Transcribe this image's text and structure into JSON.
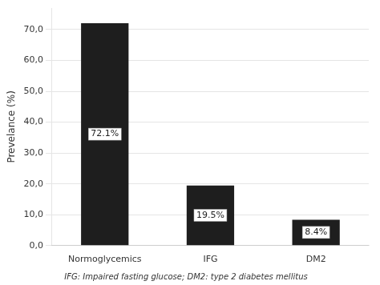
{
  "chart_data": {
    "type": "bar",
    "categories": [
      "Normoglycemics",
      "IFG",
      "DM2"
    ],
    "values": [
      72.1,
      19.5,
      8.4
    ],
    "value_labels": [
      "72.1%",
      "19.5%",
      "8.4%"
    ],
    "data_labels": true,
    "color": "#1e1e1e",
    "ylabel": "Prevelance (%)",
    "ylim": [
      0,
      77
    ],
    "yticks": [
      {
        "value": 0,
        "label": "0,0"
      },
      {
        "value": 10,
        "label": "10,0"
      },
      {
        "value": 20,
        "label": "20,0"
      },
      {
        "value": 30,
        "label": "30,0"
      },
      {
        "value": 40,
        "label": "40,0"
      },
      {
        "value": 50,
        "label": "50,0"
      },
      {
        "value": 60,
        "label": "60,0"
      },
      {
        "value": 70,
        "label": "70,0"
      }
    ],
    "grid": true,
    "footnote": "IFG: Impaired fasting glucose; DM2: type 2 diabetes mellitus"
  }
}
